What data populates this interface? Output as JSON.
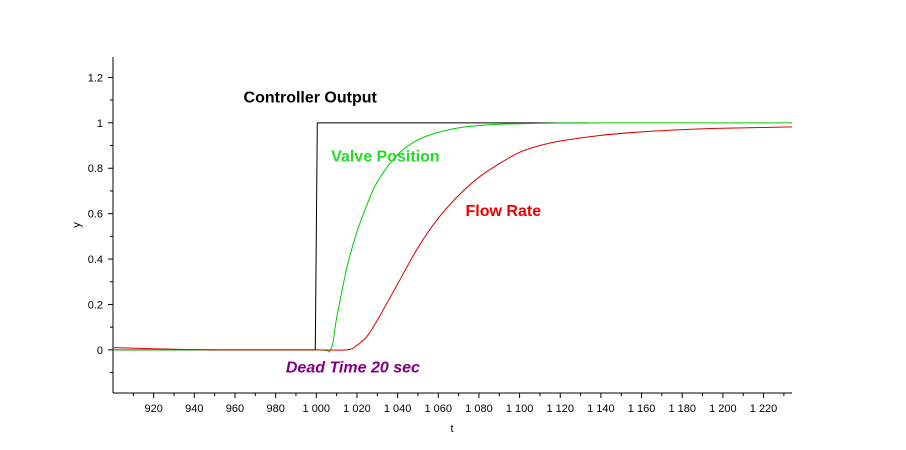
{
  "chart_data": {
    "type": "line",
    "xlabel": "t",
    "ylabel": "y",
    "xlim": [
      900,
      1234
    ],
    "ylim": [
      -0.19,
      1.29
    ],
    "x_ticks": [
      920,
      940,
      960,
      980,
      1000,
      1020,
      1040,
      1060,
      1080,
      1100,
      1120,
      1140,
      1160,
      1180,
      1200,
      1220
    ],
    "x_tick_labels": [
      "920",
      "940",
      "960",
      "980",
      "1 000",
      "1 020",
      "1 040",
      "1 060",
      "1 080",
      "1 100",
      "1 120",
      "1 140",
      "1 160",
      "1 180",
      "1 200",
      "1 220"
    ],
    "y_ticks": [
      0,
      0.2,
      0.4,
      0.6,
      0.8,
      1,
      1.2
    ],
    "y_tick_labels": [
      "0",
      "0.2",
      "0.4",
      "0.6",
      "0.8",
      "1",
      "1.2"
    ],
    "grid": false,
    "series": [
      {
        "name": "Controller Output",
        "color": "#000000",
        "x": [
          900,
          920,
          940,
          960,
          980,
          999.5,
          1000,
          1000.5,
          1020,
          1060,
          1100,
          1134
        ],
        "y": [
          0,
          0,
          0,
          0,
          0,
          0,
          0.5,
          1,
          1,
          1,
          1,
          1
        ]
      },
      {
        "name": "Valve Position",
        "color": "#00cc00",
        "x": [
          900,
          950,
          1000,
          1007,
          1010,
          1015,
          1020,
          1025,
          1030,
          1040,
          1050,
          1060,
          1070,
          1080,
          1090,
          1100,
          1120,
          1140,
          1180,
          1234
        ],
        "y": [
          0,
          0,
          0,
          0,
          0.14,
          0.36,
          0.52,
          0.64,
          0.74,
          0.86,
          0.925,
          0.958,
          0.978,
          0.988,
          0.994,
          0.996,
          0.999,
          1,
          1,
          1
        ]
      },
      {
        "name": "Flow Rate",
        "color": "#dd0000",
        "x": [
          900,
          920,
          950,
          1000,
          1015,
          1020,
          1025,
          1030,
          1035,
          1040,
          1050,
          1060,
          1070,
          1080,
          1090,
          1100,
          1110,
          1120,
          1140,
          1160,
          1180,
          1200,
          1234
        ],
        "y": [
          0.01,
          0.005,
          0,
          0,
          0,
          0.02,
          0.06,
          0.13,
          0.21,
          0.29,
          0.45,
          0.58,
          0.68,
          0.76,
          0.82,
          0.87,
          0.9,
          0.92,
          0.945,
          0.96,
          0.97,
          0.976,
          0.982
        ]
      }
    ],
    "annotations": [
      {
        "text": "Controller Output",
        "x": 997,
        "y": 1.09,
        "color": "#000000",
        "italic": false
      },
      {
        "text": "Valve Position",
        "x": 1034,
        "y": 0.83,
        "color": "#22dd22",
        "italic": false
      },
      {
        "text": "Flow Rate",
        "x": 1092,
        "y": 0.59,
        "color": "#ee0000",
        "italic": false
      },
      {
        "text": "Dead Time 20 sec",
        "x": 1018,
        "y": -0.1,
        "color": "#800080",
        "italic": true
      }
    ]
  }
}
